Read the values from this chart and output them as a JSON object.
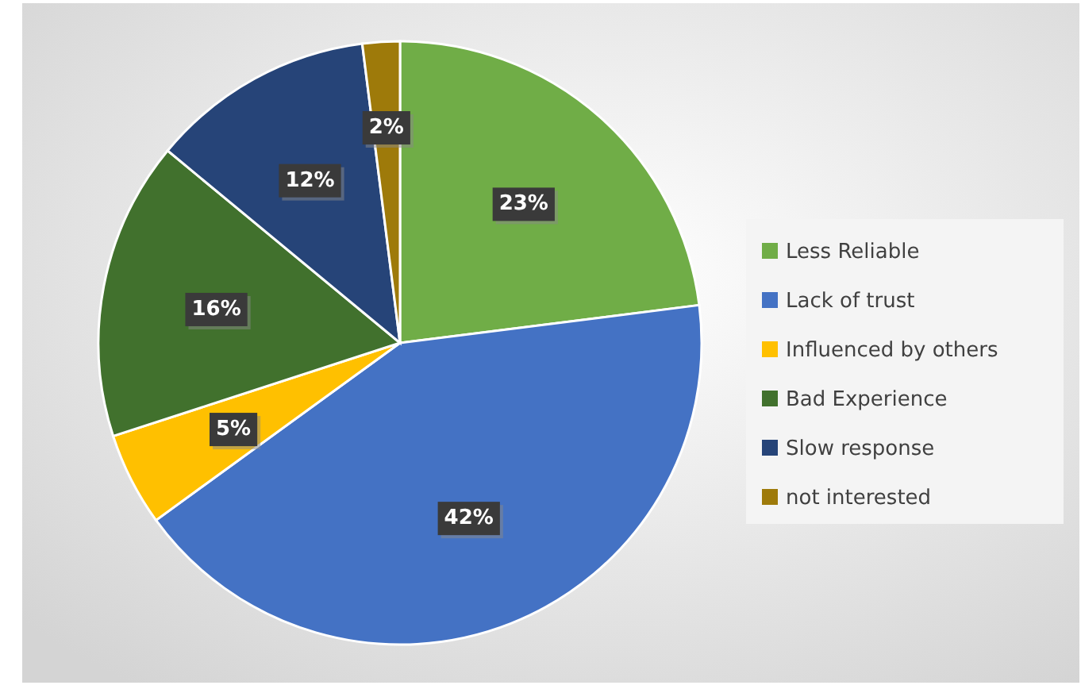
{
  "chart_data": {
    "type": "pie",
    "categories": [
      "Less Reliable",
      "Lack of trust",
      "Influenced by others",
      "Bad Experience",
      "Slow response",
      "not interested"
    ],
    "values": [
      23,
      42,
      5,
      16,
      12,
      2
    ],
    "colors": [
      "#70ad47",
      "#4472c4",
      "#ffc000",
      "#41712d",
      "#264478",
      "#9e7a0a"
    ],
    "value_labels": [
      "23%",
      "42%",
      "5%",
      "16%",
      "12%",
      "2%"
    ],
    "legend": "right"
  }
}
